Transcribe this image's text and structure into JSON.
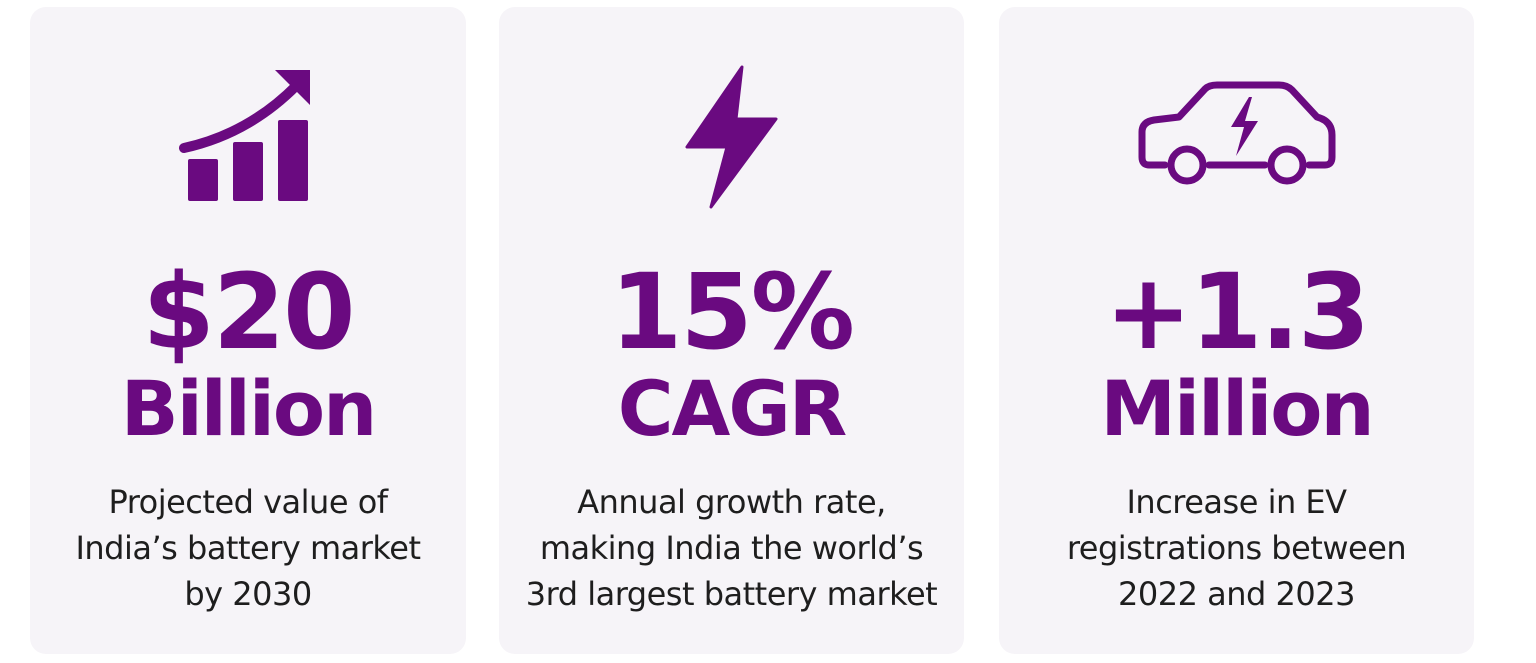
{
  "accent_color": "#6a0a80",
  "cards": [
    {
      "icon": "bar-chart-growth-icon",
      "value": "$20",
      "unit": "Billion",
      "description": [
        "Projected value of",
        "India’s battery market",
        "by 2030"
      ]
    },
    {
      "icon": "lightning-bolt-icon",
      "value": "15%",
      "unit": "CAGR",
      "description": [
        "Annual growth rate,",
        "making India the world’s",
        "3rd largest battery market"
      ]
    },
    {
      "icon": "electric-car-icon",
      "value": "+1.3",
      "unit": "Million",
      "description": [
        "Increase in EV",
        "registrations between",
        "2022 and 2023"
      ]
    }
  ]
}
